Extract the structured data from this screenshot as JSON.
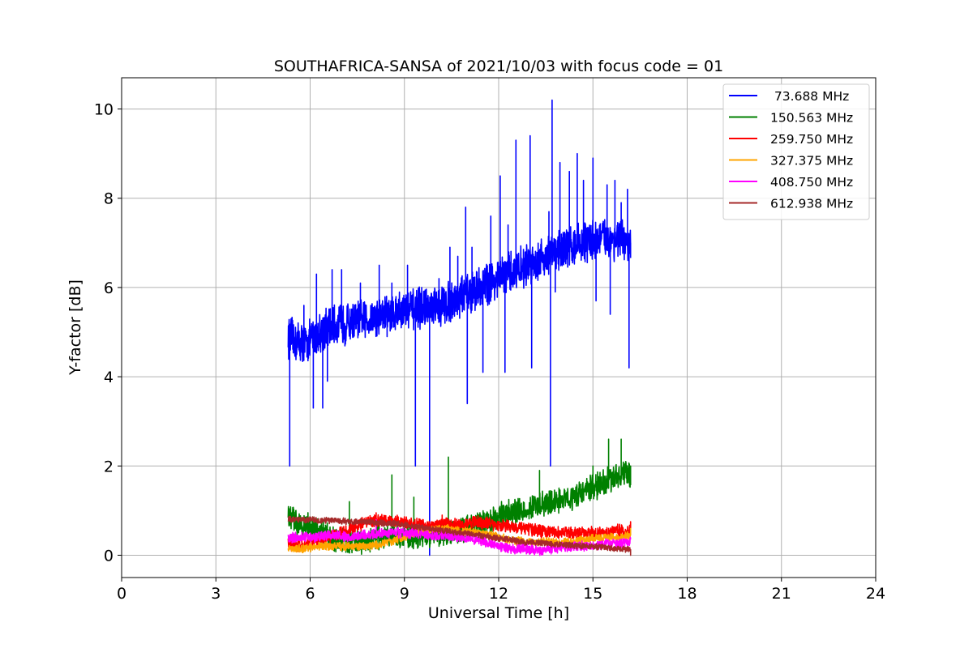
{
  "chart_data": {
    "type": "line",
    "title": "SOUTHAFRICA-SANSA of 2021/10/03 with focus code = 01",
    "xlabel": "Universal Time [h]",
    "ylabel": "Y-factor [dB]",
    "xlim": [
      0,
      24
    ],
    "ylim": [
      -0.5,
      10.7
    ],
    "xticks": [
      0,
      3,
      6,
      9,
      12,
      15,
      18,
      21,
      24
    ],
    "yticks": [
      0,
      2,
      4,
      6,
      8,
      10
    ],
    "grid": true,
    "legend_position": "top-right",
    "series": [
      {
        "name": " 73.688 MHz",
        "color": "#0000ff",
        "x": [
          5.3,
          5.5,
          5.8,
          6.0,
          6.3,
          6.6,
          6.9,
          7.2,
          7.5,
          7.8,
          8.1,
          8.4,
          8.7,
          9.0,
          9.3,
          9.6,
          9.9,
          10.2,
          10.5,
          10.8,
          11.1,
          11.4,
          11.7,
          12.0,
          12.3,
          12.6,
          12.9,
          13.2,
          13.5,
          13.8,
          14.1,
          14.4,
          14.7,
          15.0,
          15.3,
          15.6,
          15.9,
          16.2
        ],
        "y": [
          4.9,
          4.8,
          4.75,
          4.8,
          5.0,
          5.1,
          5.15,
          5.2,
          5.25,
          5.3,
          5.35,
          5.4,
          5.45,
          5.5,
          5.5,
          5.55,
          5.5,
          5.6,
          5.7,
          5.8,
          5.9,
          6.0,
          6.1,
          6.2,
          6.3,
          6.4,
          6.5,
          6.6,
          6.7,
          6.8,
          6.9,
          6.95,
          7.0,
          7.05,
          7.1,
          7.1,
          7.05,
          6.9
        ],
        "spikes": [
          [
            5.35,
            2.0
          ],
          [
            5.8,
            5.6
          ],
          [
            6.1,
            3.3
          ],
          [
            6.2,
            6.3
          ],
          [
            6.4,
            3.3
          ],
          [
            6.55,
            3.9
          ],
          [
            6.7,
            6.4
          ],
          [
            7.0,
            6.4
          ],
          [
            7.6,
            6.1
          ],
          [
            8.2,
            6.5
          ],
          [
            8.45,
            4.9
          ],
          [
            8.6,
            6.1
          ],
          [
            9.1,
            6.5
          ],
          [
            9.35,
            2.0
          ],
          [
            9.55,
            6.0
          ],
          [
            9.8,
            0.0
          ],
          [
            10.1,
            6.2
          ],
          [
            10.45,
            6.9
          ],
          [
            10.7,
            6.7
          ],
          [
            10.95,
            7.8
          ],
          [
            11.0,
            3.4
          ],
          [
            11.15,
            6.9
          ],
          [
            11.5,
            4.1
          ],
          [
            11.75,
            7.6
          ],
          [
            12.05,
            8.5
          ],
          [
            12.2,
            4.1
          ],
          [
            12.3,
            7.4
          ],
          [
            12.55,
            9.3
          ],
          [
            12.85,
            6.5
          ],
          [
            13.0,
            9.4
          ],
          [
            13.05,
            4.2
          ],
          [
            13.6,
            7.7
          ],
          [
            13.65,
            2.0
          ],
          [
            13.7,
            10.2
          ],
          [
            13.8,
            5.9
          ],
          [
            13.95,
            8.8
          ],
          [
            14.25,
            8.6
          ],
          [
            14.5,
            9.0
          ],
          [
            14.7,
            8.4
          ],
          [
            15.0,
            8.9
          ],
          [
            15.1,
            5.7
          ],
          [
            15.45,
            8.3
          ],
          [
            15.55,
            5.4
          ],
          [
            15.7,
            8.4
          ],
          [
            15.9,
            7.9
          ],
          [
            16.1,
            8.2
          ],
          [
            16.15,
            4.2
          ],
          [
            16.2,
            7.0
          ]
        ],
        "noise_amplitude": 0.4
      },
      {
        "name": "150.563 MHz",
        "color": "#008000",
        "x": [
          5.3,
          5.8,
          6.3,
          6.8,
          7.3,
          7.8,
          8.3,
          8.8,
          9.3,
          9.8,
          10.3,
          10.8,
          11.3,
          11.8,
          12.3,
          12.8,
          13.3,
          13.8,
          14.3,
          14.8,
          15.3,
          15.8,
          16.2
        ],
        "y": [
          0.85,
          0.7,
          0.5,
          0.35,
          0.3,
          0.3,
          0.4,
          0.4,
          0.45,
          0.45,
          0.5,
          0.55,
          0.7,
          0.8,
          0.95,
          1.0,
          1.1,
          1.2,
          1.3,
          1.45,
          1.6,
          1.8,
          1.8
        ],
        "spikes": [
          [
            7.25,
            1.2
          ],
          [
            8.6,
            1.8
          ],
          [
            9.3,
            1.3
          ],
          [
            10.4,
            2.2
          ],
          [
            13.3,
            1.9
          ],
          [
            15.0,
            2.0
          ],
          [
            15.5,
            2.6
          ],
          [
            15.9,
            2.6
          ],
          [
            16.2,
            2.0
          ]
        ],
        "noise_amplitude": 0.25
      },
      {
        "name": "259.750 MHz",
        "color": "#ff0000",
        "x": [
          5.3,
          5.8,
          6.3,
          6.8,
          7.3,
          7.8,
          8.3,
          8.8,
          9.3,
          9.8,
          10.3,
          10.8,
          11.3,
          11.8,
          12.3,
          12.8,
          13.3,
          13.8,
          14.3,
          14.8,
          15.3,
          15.8,
          16.2
        ],
        "y": [
          0.25,
          0.2,
          0.35,
          0.45,
          0.6,
          0.75,
          0.8,
          0.75,
          0.7,
          0.65,
          0.7,
          0.7,
          0.75,
          0.7,
          0.65,
          0.6,
          0.55,
          0.5,
          0.5,
          0.5,
          0.5,
          0.55,
          0.55
        ],
        "spikes": [
          [
            8.1,
            0.95
          ],
          [
            10.2,
            0.9
          ],
          [
            16.2,
            0.75
          ]
        ],
        "noise_amplitude": 0.12
      },
      {
        "name": "327.375 MHz",
        "color": "#ffa500",
        "x": [
          5.3,
          5.8,
          6.3,
          6.8,
          7.3,
          7.8,
          8.3,
          8.8,
          9.3,
          9.8,
          10.3,
          10.8,
          11.3,
          11.8,
          12.3,
          12.8,
          13.3,
          13.8,
          14.3,
          14.8,
          15.3,
          15.8,
          16.2
        ],
        "y": [
          0.15,
          0.15,
          0.2,
          0.2,
          0.2,
          0.2,
          0.25,
          0.35,
          0.5,
          0.55,
          0.6,
          0.55,
          0.5,
          0.45,
          0.35,
          0.3,
          0.3,
          0.3,
          0.3,
          0.35,
          0.4,
          0.4,
          0.45
        ],
        "spikes": [
          [
            16.2,
            0.6
          ]
        ],
        "noise_amplitude": 0.08
      },
      {
        "name": "408.750 MHz",
        "color": "#ff00ff",
        "x": [
          5.3,
          5.8,
          6.3,
          6.8,
          7.3,
          7.8,
          8.3,
          8.8,
          9.3,
          9.8,
          10.3,
          10.8,
          11.3,
          11.8,
          12.3,
          12.8,
          13.3,
          13.8,
          14.3,
          14.8,
          15.3,
          15.8,
          16.2
        ],
        "y": [
          0.4,
          0.4,
          0.4,
          0.45,
          0.4,
          0.45,
          0.5,
          0.5,
          0.5,
          0.45,
          0.45,
          0.4,
          0.35,
          0.25,
          0.15,
          0.15,
          0.1,
          0.15,
          0.2,
          0.2,
          0.25,
          0.25,
          0.3
        ],
        "spikes": [
          [
            8.1,
            0.8
          ]
        ],
        "noise_amplitude": 0.1
      },
      {
        "name": "612.938 MHz",
        "color": "#a52a2a",
        "x": [
          5.3,
          5.8,
          6.3,
          6.8,
          7.3,
          7.8,
          8.3,
          8.8,
          9.3,
          9.8,
          10.3,
          10.8,
          11.3,
          11.8,
          12.3,
          12.8,
          13.3,
          13.8,
          14.3,
          14.8,
          15.3,
          15.8,
          16.2
        ],
        "y": [
          0.8,
          0.8,
          0.78,
          0.78,
          0.75,
          0.75,
          0.72,
          0.7,
          0.65,
          0.6,
          0.55,
          0.5,
          0.45,
          0.4,
          0.35,
          0.3,
          0.28,
          0.25,
          0.22,
          0.2,
          0.18,
          0.15,
          0.12
        ],
        "spikes": [
          [
            16.2,
            0.0
          ]
        ],
        "noise_amplitude": 0.06
      }
    ]
  }
}
